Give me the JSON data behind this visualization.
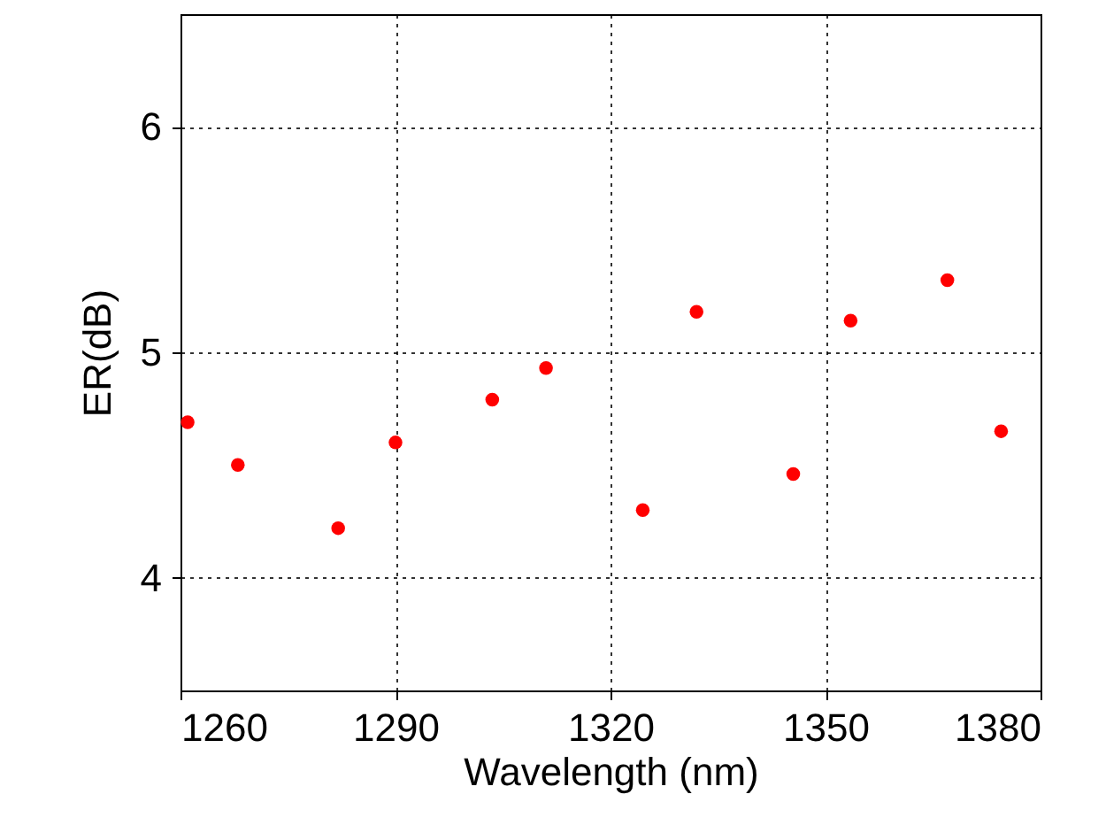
{
  "chart_data": {
    "type": "scatter",
    "xlabel": "Wavelength (nm)",
    "ylabel": "ER(dB)",
    "x": [
      1261,
      1268,
      1282,
      1290,
      1303.5,
      1311,
      1324.5,
      1332,
      1345.5,
      1353.5,
      1367,
      1374.5
    ],
    "series": [
      {
        "color": "#ff0000",
        "values": [
          4.69,
          4.5,
          4.22,
          4.6,
          4.79,
          4.93,
          4.3,
          5.18,
          4.46,
          5.14,
          5.32,
          4.65
        ]
      }
    ],
    "xlim": [
      1260,
      1380
    ],
    "xticks": [
      1260,
      1290,
      1320,
      1350,
      1380
    ],
    "ylim": [
      3.5,
      6.5
    ],
    "yticks": [
      4,
      5,
      6
    ],
    "grid": true,
    "marker": "circle"
  }
}
